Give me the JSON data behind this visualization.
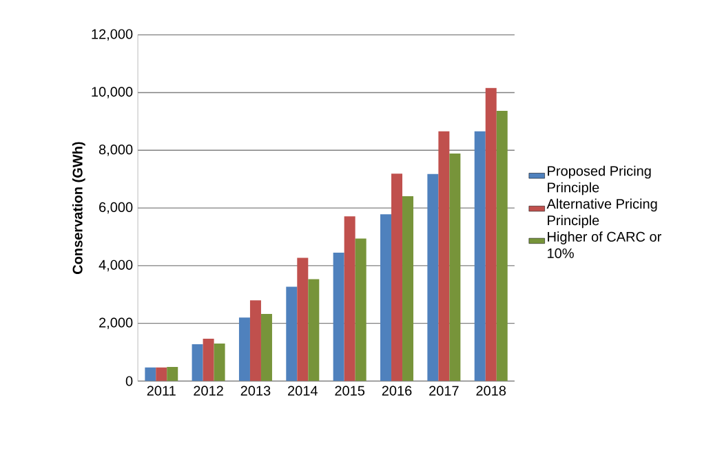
{
  "chart_data": {
    "type": "bar",
    "ylabel": "Conservation (GWh)",
    "categories": [
      "2011",
      "2012",
      "2013",
      "2014",
      "2015",
      "2016",
      "2017",
      "2018"
    ],
    "series": [
      {
        "name": "Proposed Pricing Principle",
        "color": "#4f81bd",
        "values": [
          470,
          1280,
          2200,
          3270,
          4450,
          5780,
          7180,
          8660
        ]
      },
      {
        "name": "Alternative Pricing Principle",
        "color": "#c0504d",
        "values": [
          470,
          1470,
          2800,
          4270,
          5710,
          7190,
          8660,
          10160
        ]
      },
      {
        "name": "Higher of CARC or 10%",
        "color": "#77943a",
        "values": [
          490,
          1300,
          2330,
          3530,
          4940,
          6410,
          7890,
          9370
        ]
      }
    ],
    "ylim": [
      0,
      12000
    ],
    "yticks": [
      0,
      {
        "value": 2000,
        "label": "2,000"
      },
      {
        "value": 4000,
        "label": "4,000"
      },
      {
        "value": 6000,
        "label": "6,000"
      },
      {
        "value": 8000,
        "label": "8,000"
      },
      {
        "value": 10000,
        "label": "10,000"
      },
      {
        "value": 12000,
        "label": "12,000"
      }
    ],
    "grid": "y",
    "legend": "right"
  }
}
